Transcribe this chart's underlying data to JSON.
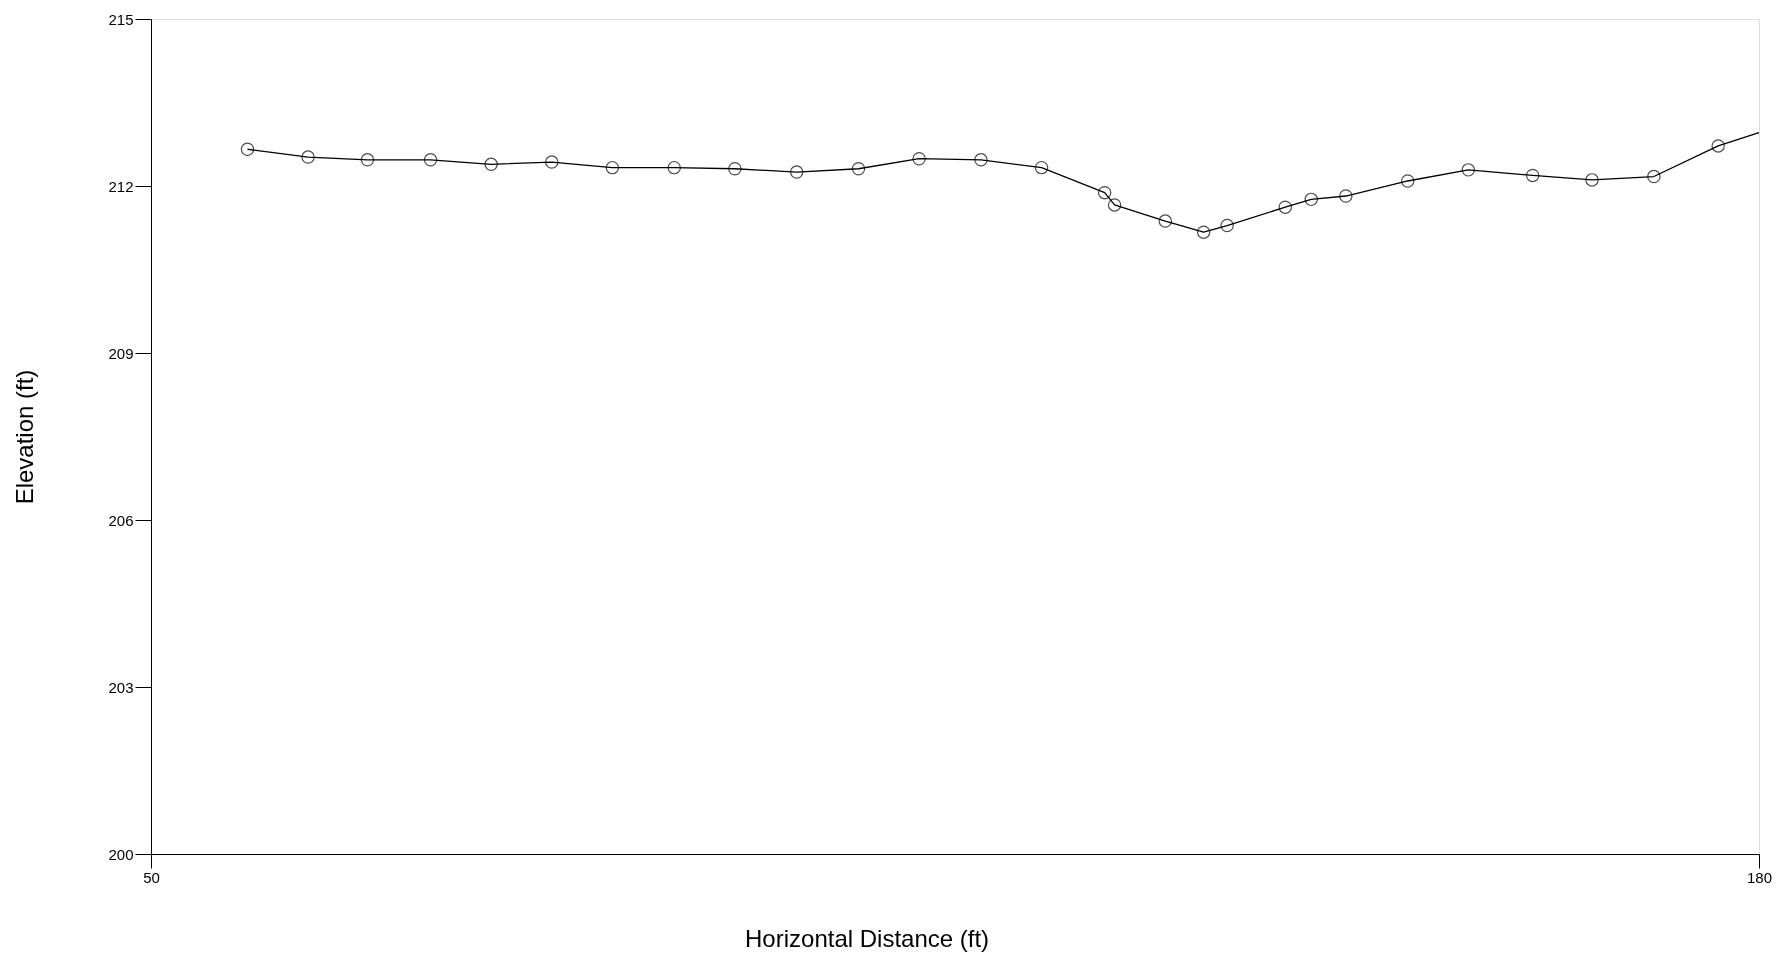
{
  "chart_data": {
    "type": "line",
    "xlabel": "Horizontal Distance (ft)",
    "ylabel": "Elevation (ft)",
    "xlim": [
      50,
      180
    ],
    "xticks": [
      50,
      180
    ],
    "ylim": [
      200,
      215
    ],
    "yticks": [
      200,
      203,
      206,
      209,
      212,
      215
    ],
    "grid": false,
    "series": [
      {
        "type": "line",
        "marker": "none",
        "color": "#000000",
        "x": [
          57.8,
          62.7,
          67.5,
          72.6,
          77.5,
          82.4,
          87.3,
          92.3,
          97.2,
          102.2,
          107.2,
          112.1,
          117.1,
          122.0,
          127.1,
          127.9,
          132.0,
          135.1,
          137.0,
          141.7,
          143.8,
          146.6,
          151.6,
          156.5,
          161.7,
          166.5,
          171.5,
          176.7,
          180
        ],
        "values": [
          212.66,
          212.52,
          212.47,
          212.47,
          212.39,
          212.43,
          212.33,
          212.33,
          212.31,
          212.25,
          212.31,
          212.49,
          212.47,
          212.33,
          211.88,
          211.66,
          211.37,
          211.17,
          211.29,
          211.62,
          211.76,
          211.82,
          212.09,
          212.29,
          212.19,
          212.11,
          212.17,
          212.72,
          212.96
        ]
      },
      {
        "type": "scatter",
        "marker": "circle",
        "color": "#000000",
        "x": [
          57.8,
          62.7,
          67.5,
          72.6,
          77.5,
          82.4,
          87.3,
          92.3,
          97.2,
          102.2,
          107.2,
          112.1,
          117.1,
          122.0,
          127.1,
          127.9,
          132.0,
          135.1,
          137.0,
          141.7,
          143.8,
          146.6,
          151.6,
          156.5,
          161.7,
          166.5,
          171.5,
          176.7
        ],
        "values": [
          212.66,
          212.52,
          212.47,
          212.47,
          212.39,
          212.43,
          212.33,
          212.33,
          212.31,
          212.25,
          212.31,
          212.49,
          212.47,
          212.33,
          211.88,
          211.66,
          211.37,
          211.17,
          211.29,
          211.62,
          211.76,
          211.82,
          212.09,
          212.29,
          212.19,
          212.11,
          212.17,
          212.72
        ]
      }
    ]
  }
}
